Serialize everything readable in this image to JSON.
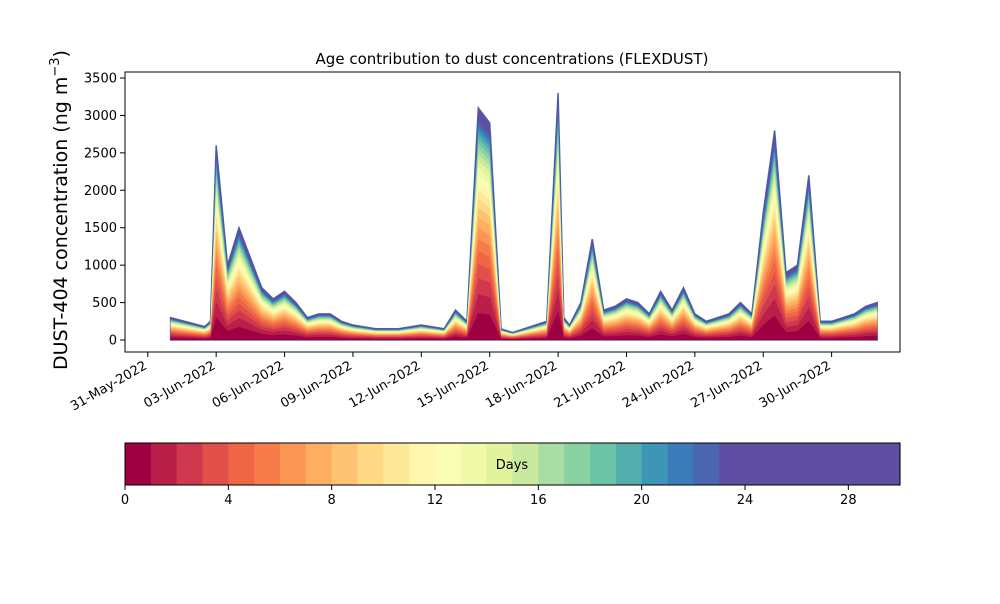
{
  "chart_data": {
    "type": "area",
    "subtype": "stacked",
    "title": "Age contribution to dust concentrations (FLEXDUST)",
    "ylabel": "DUST-404 concentration (ng m⁻³)",
    "ylabel_text": "DUST-404 concentration (ng m",
    "ylabel_superscript": "−3",
    "ylabel_close": ")",
    "xlabel": "",
    "ylim": [
      -160,
      3580
    ],
    "xlim": [
      "2022-05-30",
      "2022-07-03"
    ],
    "grid": false,
    "x_tick_labels": [
      "31-May-2022",
      "03-Jun-2022",
      "06-Jun-2022",
      "09-Jun-2022",
      "12-Jun-2022",
      "15-Jun-2022",
      "18-Jun-2022",
      "21-Jun-2022",
      "24-Jun-2022",
      "27-Jun-2022",
      "30-Jun-2022"
    ],
    "y_ticks": [
      0,
      500,
      1000,
      1500,
      2000,
      2500,
      3000,
      3500
    ],
    "x": [
      "2022-06-01",
      "2022-06-02",
      "2022-06-02T12",
      "2022-06-02T18",
      "2022-06-03",
      "2022-06-03T12",
      "2022-06-04",
      "2022-06-04T12",
      "2022-06-05",
      "2022-06-05T12",
      "2022-06-06",
      "2022-06-06T12",
      "2022-06-07",
      "2022-06-07T12",
      "2022-06-08",
      "2022-06-08T12",
      "2022-06-09",
      "2022-06-10",
      "2022-06-11",
      "2022-06-12",
      "2022-06-13",
      "2022-06-13T12",
      "2022-06-14",
      "2022-06-14T12",
      "2022-06-15",
      "2022-06-15T12",
      "2022-06-16",
      "2022-06-16T12",
      "2022-06-17",
      "2022-06-17T12",
      "2022-06-18",
      "2022-06-18T06",
      "2022-06-18T12",
      "2022-06-19",
      "2022-06-19T12",
      "2022-06-20",
      "2022-06-20T12",
      "2022-06-21",
      "2022-06-21T12",
      "2022-06-22",
      "2022-06-22T12",
      "2022-06-23",
      "2022-06-23T12",
      "2022-06-24",
      "2022-06-24T12",
      "2022-06-25",
      "2022-06-25T12",
      "2022-06-26",
      "2022-06-26T12",
      "2022-06-27",
      "2022-06-27T12",
      "2022-06-28",
      "2022-06-28T12",
      "2022-06-29",
      "2022-06-29T12",
      "2022-06-30",
      "2022-06-30T12",
      "2022-07-01",
      "2022-07-01T12",
      "2022-07-02"
    ],
    "total": [
      300,
      220,
      180,
      250,
      2600,
      1000,
      1500,
      1100,
      700,
      550,
      650,
      500,
      300,
      350,
      350,
      250,
      200,
      150,
      150,
      200,
      150,
      400,
      250,
      3100,
      2900,
      150,
      100,
      150,
      200,
      250,
      3300,
      300,
      200,
      500,
      1350,
      400,
      450,
      550,
      500,
      350,
      650,
      400,
      700,
      350,
      250,
      300,
      350,
      500,
      350,
      1700,
      2800,
      900,
      1000,
      2200,
      250,
      250,
      300,
      350,
      450,
      500
    ],
    "series_bands": "30 daily age classes (0–30 days), stacked in order of age",
    "colorbar": {
      "label": "Days",
      "min": 0,
      "max": 30,
      "ticks": [
        0,
        4,
        8,
        12,
        16,
        20,
        24,
        28
      ],
      "colors": [
        "#9e0142",
        "#b91f48",
        "#d0384e",
        "#e1504a",
        "#ef6645",
        "#f67d4a",
        "#fa9656",
        "#fdae61",
        "#fdc372",
        "#fed884",
        "#fee999",
        "#fff6af",
        "#fbfdb7",
        "#f0f9a8",
        "#e1f39c",
        "#c8e99e",
        "#aadda4",
        "#8ad1a4",
        "#6cc3a5",
        "#54aead",
        "#3d95b8",
        "#3a7cb8",
        "#4a66ae",
        "#5e4fa2",
        "#5e4fa2",
        "#5e4fa2",
        "#5e4fa2",
        "#5e4fa2",
        "#5e4fa2",
        "#5e4fa2"
      ]
    }
  }
}
